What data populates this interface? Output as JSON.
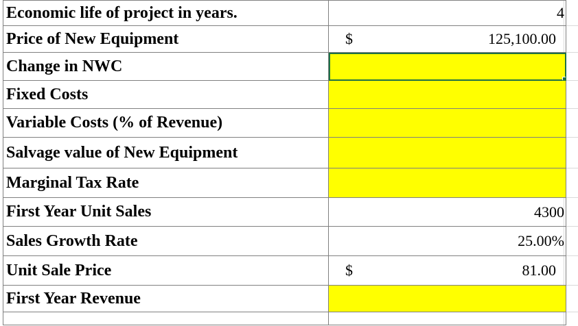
{
  "rows": [
    {
      "label": "Economic life of project in years.",
      "currency": "",
      "value": "4",
      "fill": "#ffffff"
    },
    {
      "label": "Price of New Equipment",
      "currency": "$",
      "value": "125,100.00",
      "fill": "#ffffff"
    },
    {
      "label": "Change in NWC",
      "currency": "",
      "value": "",
      "fill": "#ffff00"
    },
    {
      "label": "Fixed Costs",
      "currency": "",
      "value": "",
      "fill": "#ffff00"
    },
    {
      "label": "Variable Costs (% of Revenue)",
      "currency": "",
      "value": "",
      "fill": "#ffff00"
    },
    {
      "label": "Salvage value of New Equipment",
      "currency": "",
      "value": "",
      "fill": "#ffff00"
    },
    {
      "label": "Marginal Tax Rate",
      "currency": "",
      "value": "",
      "fill": "#ffff00"
    },
    {
      "label": "First Year Unit Sales",
      "currency": "",
      "value": "4300",
      "fill": "#ffffff"
    },
    {
      "label": "Sales Growth Rate",
      "currency": "",
      "value": "25.00%",
      "fill": "#ffffff"
    },
    {
      "label": "Unit Sale Price",
      "currency": "$",
      "value": "81.00",
      "fill": "#ffffff"
    },
    {
      "label": "First Year Revenue",
      "currency": "",
      "value": "",
      "fill": "#ffff00"
    }
  ],
  "colors": {
    "input_fill": "#ffff00",
    "selection_border": "#1e7145",
    "grid": "#7f7f7f"
  }
}
